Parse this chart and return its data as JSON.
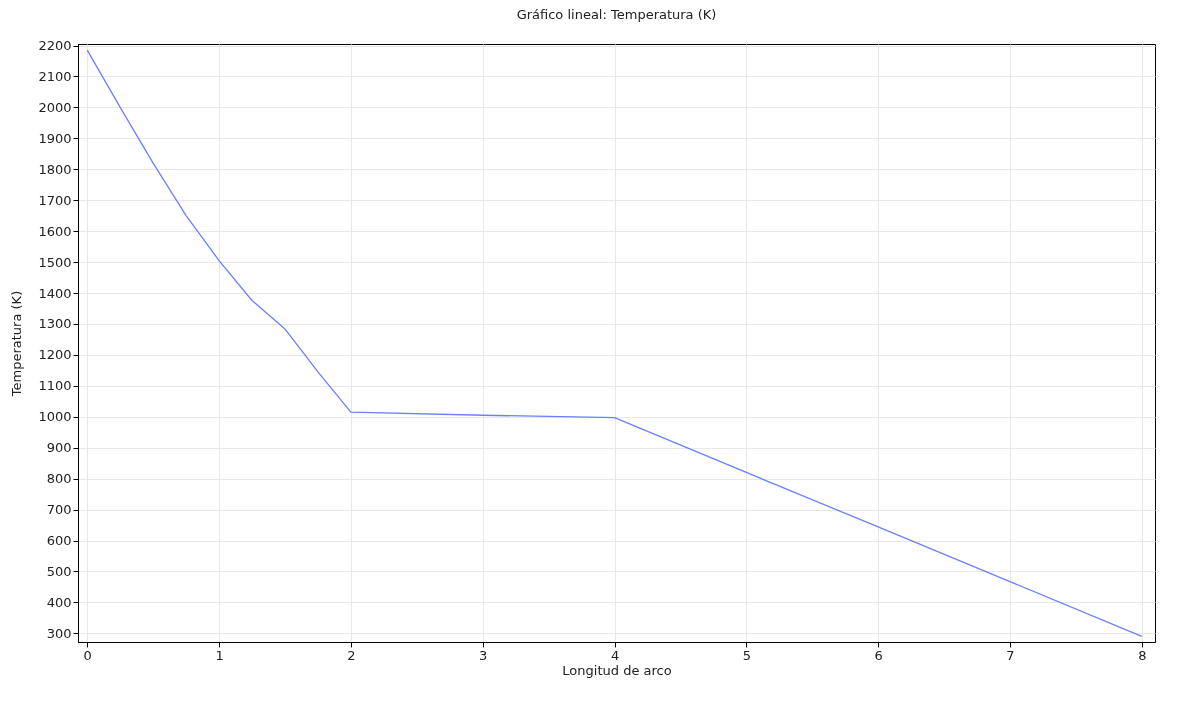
{
  "chart_data": {
    "type": "line",
    "title": "Gráfico lineal: Temperatura (K)",
    "xlabel": "Longitud de arco",
    "ylabel": "Temperatura (K)",
    "x": [
      0,
      0.25,
      0.5,
      0.75,
      1,
      1.25,
      1.5,
      1.75,
      2,
      3,
      4,
      5,
      6,
      7,
      8
    ],
    "series": [
      {
        "color": "#6b80ff",
        "values": [
          2185,
          2000,
          1820,
          1650,
          1505,
          1376,
          1284,
          1145,
          1015,
          1005,
          997,
          820,
          644,
          467,
          290
        ]
      }
    ],
    "xlim": [
      -0.07,
      8.1
    ],
    "ylim": [
      272,
      2205
    ],
    "xticks": [
      0,
      1,
      2,
      3,
      4,
      5,
      6,
      7,
      8
    ],
    "yticks": [
      300,
      400,
      500,
      600,
      700,
      800,
      900,
      1000,
      1100,
      1200,
      1300,
      1400,
      1500,
      1600,
      1700,
      1800,
      1900,
      2000,
      2100,
      2200
    ],
    "grid": true,
    "line_style": "solid"
  }
}
